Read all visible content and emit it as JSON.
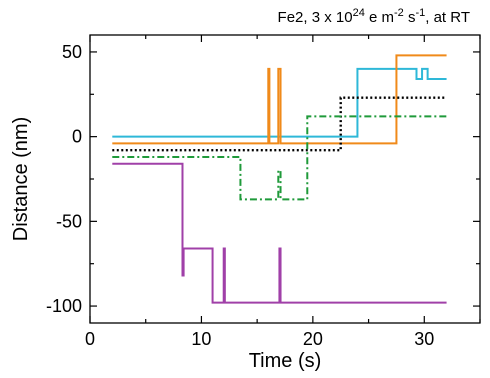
{
  "chart_data": {
    "type": "line",
    "title": {
      "prefix": "Fe2, 3 x 10",
      "exp1": "24",
      "mid": " e m",
      "exp2": "-2",
      "mid2": " s",
      "exp3": "-1",
      "suffix": ",  at RT"
    },
    "xlabel": "Time (s)",
    "ylabel": "Distance (nm)",
    "xlim": [
      0,
      35
    ],
    "ylim": [
      -110,
      60
    ],
    "xticks": [
      0,
      10,
      20,
      30
    ],
    "yticks": [
      50,
      0,
      -50,
      -100
    ],
    "ytick_labels": [
      "50",
      "0",
      "-50",
      "-100"
    ],
    "grid": false,
    "series": [
      {
        "color": "#2eb8d8",
        "style": "solid",
        "points": [
          [
            2,
            0
          ],
          [
            24,
            0
          ],
          [
            24,
            40
          ],
          [
            29.3,
            40
          ],
          [
            29.3,
            34
          ],
          [
            29.8,
            34
          ],
          [
            29.8,
            40
          ],
          [
            30.3,
            40
          ],
          [
            30.3,
            34
          ],
          [
            32,
            34
          ]
        ]
      },
      {
        "color": "#f08a1a",
        "style": "solid",
        "points": [
          [
            2,
            -4
          ],
          [
            16,
            -4
          ],
          [
            16,
            40
          ],
          [
            16.1,
            40
          ],
          [
            16.1,
            -4
          ],
          [
            16.9,
            -4
          ],
          [
            16.9,
            40
          ],
          [
            17.1,
            40
          ],
          [
            17.1,
            -4
          ],
          [
            27.5,
            -4
          ],
          [
            27.5,
            48
          ],
          [
            32,
            48
          ]
        ]
      },
      {
        "color": "#000000",
        "style": "dotted",
        "points": [
          [
            2,
            -8
          ],
          [
            22.5,
            -8
          ],
          [
            22.5,
            23
          ],
          [
            32,
            23
          ]
        ]
      },
      {
        "color": "#1f9a3a",
        "style": "dashdot",
        "points": [
          [
            2,
            -12
          ],
          [
            13.5,
            -12
          ],
          [
            13.5,
            -37
          ],
          [
            16.9,
            -37
          ],
          [
            16.9,
            -20
          ],
          [
            17.1,
            -20
          ],
          [
            17.1,
            -37
          ],
          [
            19.5,
            -37
          ],
          [
            19.5,
            12
          ],
          [
            32,
            12
          ]
        ]
      },
      {
        "color": "#a040a8",
        "style": "solid",
        "points": [
          [
            2,
            -16
          ],
          [
            8.3,
            -16
          ],
          [
            8.3,
            -82
          ],
          [
            8.4,
            -82
          ],
          [
            8.4,
            -66
          ],
          [
            11,
            -66
          ],
          [
            11,
            -98
          ],
          [
            12,
            -98
          ],
          [
            12,
            -66
          ],
          [
            12.1,
            -66
          ],
          [
            12.1,
            -98
          ],
          [
            17,
            -98
          ],
          [
            17,
            -66
          ],
          [
            17.1,
            -66
          ],
          [
            17.1,
            -98
          ],
          [
            32,
            -98
          ]
        ]
      }
    ]
  }
}
